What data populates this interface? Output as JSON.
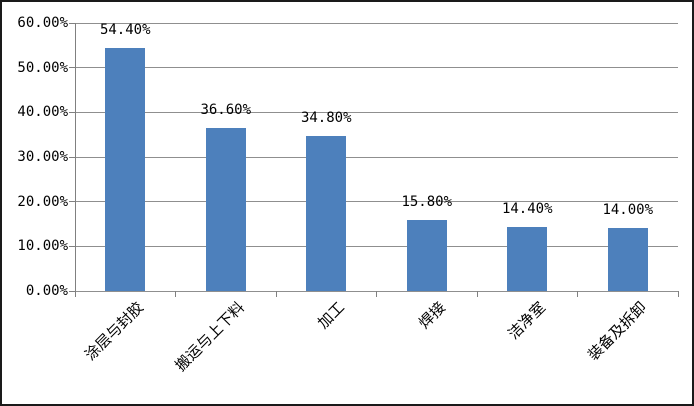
{
  "chart_data": {
    "type": "bar",
    "title": "",
    "xlabel": "",
    "ylabel": "",
    "categories": [
      "涂层与封胶",
      "搬运与上下料",
      "加工",
      "焊接",
      "洁净室",
      "装备及拆卸"
    ],
    "values": [
      54.4,
      36.6,
      34.8,
      15.8,
      14.4,
      14.0
    ],
    "data_labels": [
      "54.40%",
      "36.60%",
      "34.80%",
      "15.80%",
      "14.40%",
      "14.00%"
    ],
    "y_tick_labels": [
      "0.00%",
      "10.00%",
      "20.00%",
      "30.00%",
      "40.00%",
      "50.00%",
      "60.00%"
    ],
    "y_tick_values": [
      0,
      10,
      20,
      30,
      40,
      50,
      60
    ],
    "ylim": [
      0,
      60
    ],
    "grid": true,
    "legend_position": "none",
    "colors": {
      "bar_fill": "#4d80bc",
      "gridline": "#8f8f8f",
      "axis": "#808080",
      "chart_border": "#1a1a1a",
      "background": "#ffffff",
      "label_text": "#000000"
    }
  }
}
